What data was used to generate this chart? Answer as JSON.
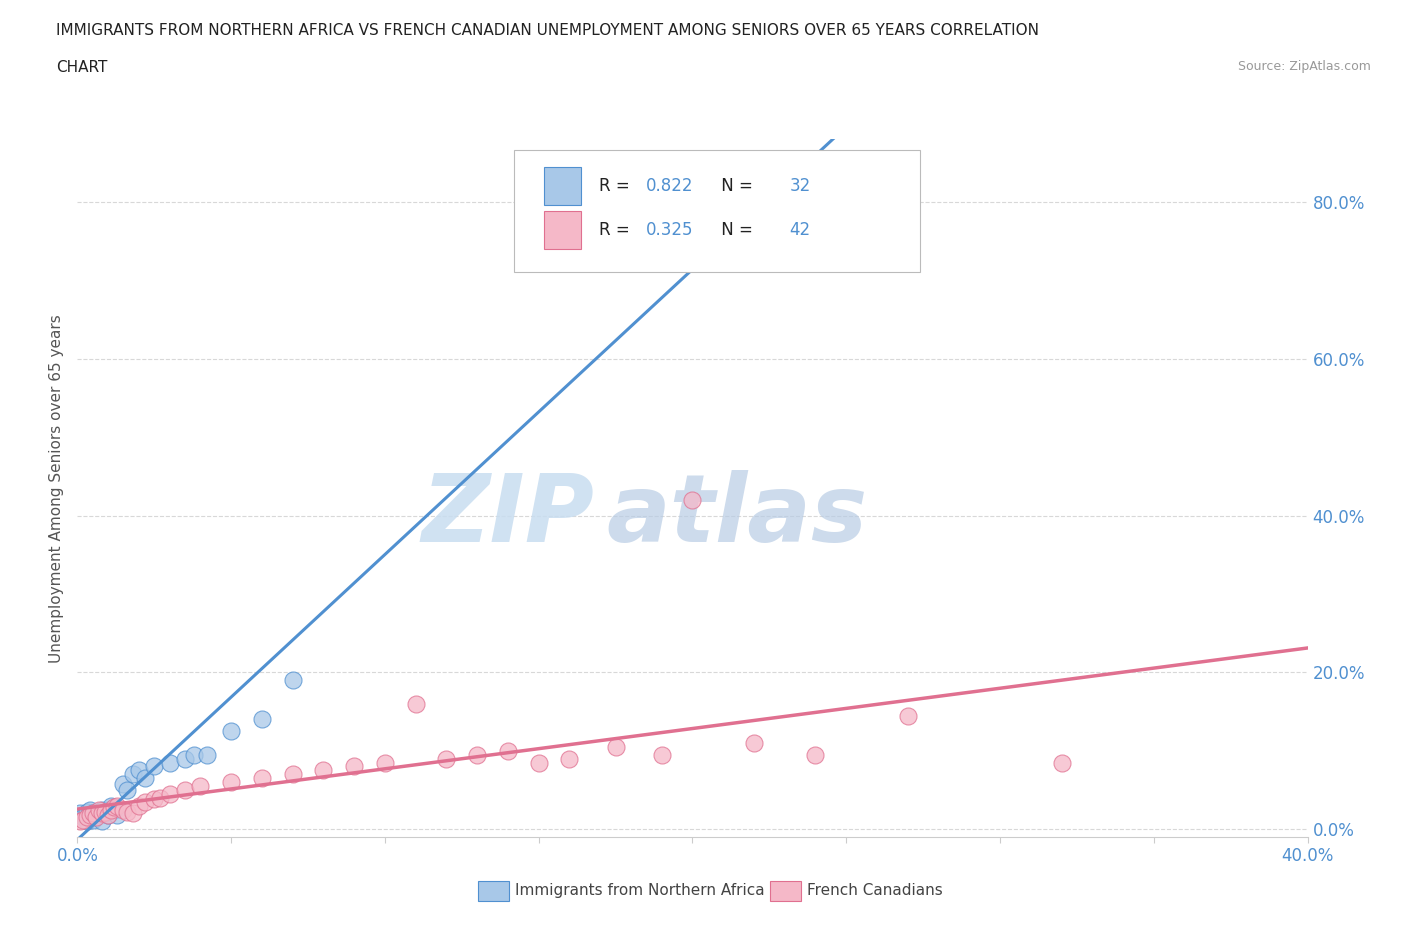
{
  "title_line1": "IMMIGRANTS FROM NORTHERN AFRICA VS FRENCH CANADIAN UNEMPLOYMENT AMONG SENIORS OVER 65 YEARS CORRELATION",
  "title_line2": "CHART",
  "source": "Source: ZipAtlas.com",
  "ylabel": "Unemployment Among Seniors over 65 years",
  "xlim": [
    0.0,
    0.4
  ],
  "ylim": [
    -0.01,
    0.88
  ],
  "xticks": [
    0.0,
    0.05,
    0.1,
    0.15,
    0.2,
    0.25,
    0.3,
    0.35,
    0.4
  ],
  "yticks_right": [
    0.0,
    0.2,
    0.4,
    0.6,
    0.8
  ],
  "ytick_labels_right": [
    "0.0%",
    "20.0%",
    "40.0%",
    "60.0%",
    "80.0%"
  ],
  "series1_name": "Immigrants from Northern Africa",
  "series1_color": "#a8c8e8",
  "series1_R": 0.822,
  "series1_N": 32,
  "series2_name": "French Canadians",
  "series2_color": "#f5b8c8",
  "series2_R": 0.325,
  "series2_N": 42,
  "series1_x": [
    0.001,
    0.002,
    0.003,
    0.003,
    0.004,
    0.004,
    0.005,
    0.005,
    0.006,
    0.007,
    0.008,
    0.008,
    0.009,
    0.01,
    0.01,
    0.011,
    0.012,
    0.013,
    0.015,
    0.016,
    0.018,
    0.02,
    0.022,
    0.025,
    0.03,
    0.035,
    0.038,
    0.042,
    0.05,
    0.06,
    0.07,
    0.21
  ],
  "series1_y": [
    0.02,
    0.015,
    0.022,
    0.01,
    0.025,
    0.015,
    0.02,
    0.012,
    0.018,
    0.022,
    0.025,
    0.01,
    0.02,
    0.018,
    0.025,
    0.03,
    0.025,
    0.018,
    0.058,
    0.05,
    0.07,
    0.075,
    0.065,
    0.08,
    0.085,
    0.09,
    0.095,
    0.095,
    0.125,
    0.14,
    0.19,
    0.81
  ],
  "series2_x": [
    0.001,
    0.002,
    0.003,
    0.004,
    0.005,
    0.006,
    0.007,
    0.008,
    0.009,
    0.01,
    0.011,
    0.012,
    0.013,
    0.015,
    0.016,
    0.018,
    0.02,
    0.022,
    0.025,
    0.027,
    0.03,
    0.035,
    0.04,
    0.05,
    0.06,
    0.07,
    0.08,
    0.09,
    0.1,
    0.11,
    0.12,
    0.13,
    0.14,
    0.15,
    0.16,
    0.175,
    0.19,
    0.2,
    0.22,
    0.24,
    0.27,
    0.32
  ],
  "series2_y": [
    0.01,
    0.012,
    0.015,
    0.018,
    0.02,
    0.015,
    0.025,
    0.02,
    0.022,
    0.018,
    0.025,
    0.028,
    0.03,
    0.025,
    0.022,
    0.02,
    0.03,
    0.035,
    0.038,
    0.04,
    0.045,
    0.05,
    0.055,
    0.06,
    0.065,
    0.07,
    0.075,
    0.08,
    0.085,
    0.16,
    0.09,
    0.095,
    0.1,
    0.085,
    0.09,
    0.105,
    0.095,
    0.42,
    0.11,
    0.095,
    0.145,
    0.085
  ],
  "trend1_color": "#5090d0",
  "trend2_color": "#e07090",
  "watermark_zip": "ZIP",
  "watermark_atlas": "atlas",
  "background_color": "#ffffff",
  "grid_color": "#d8d8d8"
}
